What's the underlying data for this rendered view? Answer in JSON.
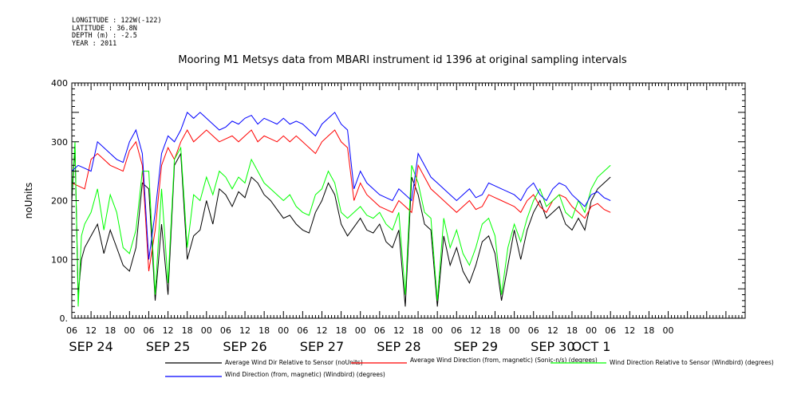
{
  "header": {
    "longitude": "LONGITUDE : 122W(-122)",
    "latitude": "LATITUDE : 36.8N",
    "depth": "DEPTH (m) : -2.5",
    "year": "YEAR : 2011"
  },
  "chart_data": {
    "type": "line",
    "title": "Mooring M1 Metsys data from MBARI instrument id 1396 at original sampling intervals",
    "ylabel": "noUnits",
    "ylim": [
      0,
      400
    ],
    "yticks": [
      0,
      100,
      200,
      300,
      400
    ],
    "ytick_labels": [
      "0.",
      "100",
      "200",
      "300",
      "400"
    ],
    "x_unit": "hours since 2011-09-24 00:00",
    "xlim": [
      6,
      216
    ],
    "hour_ticks": [
      "06",
      "12",
      "18",
      "00",
      "06",
      "12",
      "18",
      "00",
      "06",
      "12",
      "18",
      "00",
      "06",
      "12",
      "18",
      "00",
      "06",
      "12",
      "18",
      "00",
      "06",
      "12",
      "18",
      "00",
      "06",
      "12",
      "18",
      "00",
      "06",
      "12",
      "18",
      "00"
    ],
    "day_labels": [
      {
        "label": "SEP 24",
        "x": 12
      },
      {
        "label": "SEP 25",
        "x": 36
      },
      {
        "label": "SEP 26",
        "x": 60
      },
      {
        "label": "SEP 27",
        "x": 84
      },
      {
        "label": "SEP 28",
        "x": 108
      },
      {
        "label": "SEP 29",
        "x": 132
      },
      {
        "label": "SEP 30",
        "x": 156
      },
      {
        "label": "OCT 1",
        "x": 168
      }
    ],
    "grid": false,
    "legend_placement": "bottom",
    "series": [
      {
        "name": "Average Wind Dir Relative to Sensor (noUnits)",
        "color": "#000000",
        "x": [
          6,
          7,
          8,
          9,
          10,
          12,
          14,
          16,
          18,
          20,
          22,
          24,
          26,
          28,
          30,
          32,
          34,
          36,
          38,
          40,
          42,
          44,
          46,
          48,
          50,
          52,
          54,
          56,
          58,
          60,
          62,
          64,
          66,
          68,
          70,
          72,
          74,
          76,
          78,
          80,
          82,
          84,
          86,
          88,
          90,
          92,
          94,
          96,
          98,
          100,
          102,
          104,
          106,
          108,
          110,
          112,
          114,
          116,
          118,
          120,
          122,
          124,
          126,
          128,
          130,
          132,
          134,
          136,
          138,
          140,
          142,
          144,
          146,
          148,
          150,
          152,
          154,
          156,
          158,
          160,
          162,
          164,
          166,
          168,
          170,
          172,
          174
        ],
        "y": [
          200,
          290,
          40,
          100,
          120,
          140,
          160,
          110,
          150,
          120,
          90,
          80,
          120,
          230,
          220,
          30,
          160,
          40,
          260,
          280,
          100,
          140,
          150,
          200,
          160,
          220,
          210,
          190,
          215,
          205,
          240,
          230,
          210,
          200,
          185,
          170,
          175,
          160,
          150,
          145,
          180,
          200,
          230,
          210,
          160,
          140,
          155,
          170,
          150,
          145,
          160,
          130,
          120,
          150,
          20,
          240,
          210,
          160,
          150,
          20,
          140,
          90,
          120,
          80,
          60,
          90,
          130,
          140,
          110,
          30,
          90,
          150,
          100,
          150,
          180,
          200,
          170,
          180,
          190,
          160,
          150,
          170,
          150,
          200,
          220,
          230,
          240
        ],
        "breaks": []
      },
      {
        "name": "Average Wind Direction (from, magnetic) (Sonic-n/s) (degrees)",
        "color": "#ff0000",
        "x": [
          6,
          8,
          10,
          12,
          14,
          16,
          18,
          20,
          22,
          24,
          26,
          28,
          30,
          32,
          34,
          36,
          38,
          40,
          42,
          44,
          46,
          48,
          50,
          52,
          54,
          56,
          58,
          60,
          62,
          64,
          66,
          68,
          70,
          72,
          74,
          76,
          78,
          80,
          82,
          84,
          86,
          88,
          90,
          92,
          94,
          96,
          98,
          100,
          102,
          104,
          106,
          108,
          110,
          112,
          114,
          116,
          118,
          120,
          122,
          124,
          126,
          128,
          130,
          132,
          134,
          136,
          138,
          140,
          142,
          144,
          146,
          148,
          150,
          152,
          154,
          156,
          158,
          160,
          162,
          164,
          166,
          168,
          170,
          172,
          174
        ],
        "y": [
          230,
          225,
          220,
          270,
          280,
          270,
          260,
          255,
          250,
          285,
          300,
          260,
          80,
          150,
          260,
          290,
          270,
          300,
          320,
          300,
          310,
          320,
          310,
          300,
          305,
          310,
          300,
          310,
          320,
          300,
          310,
          305,
          300,
          310,
          300,
          310,
          300,
          290,
          280,
          300,
          310,
          320,
          300,
          290,
          200,
          230,
          210,
          200,
          190,
          185,
          180,
          200,
          190,
          180,
          260,
          240,
          220,
          210,
          200,
          190,
          180,
          190,
          200,
          185,
          190,
          210,
          205,
          200,
          195,
          190,
          180,
          200,
          210,
          190,
          180,
          200,
          210,
          205,
          190,
          180,
          170,
          190,
          195,
          185,
          180
        ],
        "breaks": []
      },
      {
        "name": "Wind Direction Relative to Sensor (Windbird) (degrees)",
        "color": "#00ff00",
        "x": [
          6,
          7,
          8,
          9,
          10,
          12,
          14,
          16,
          18,
          20,
          22,
          24,
          26,
          28,
          30,
          32,
          34,
          36,
          38,
          40,
          42,
          44,
          46,
          48,
          50,
          52,
          54,
          56,
          58,
          60,
          62,
          64,
          66,
          68,
          70,
          72,
          74,
          76,
          78,
          80,
          82,
          84,
          86,
          88,
          90,
          92,
          94,
          96,
          98,
          100,
          102,
          104,
          106,
          108,
          110,
          112,
          114,
          116,
          118,
          120,
          122,
          124,
          126,
          128,
          130,
          132,
          134,
          136,
          138,
          140,
          142,
          144,
          146,
          148,
          150,
          152,
          154,
          156,
          158,
          160,
          162,
          164,
          166,
          168,
          170,
          172,
          174
        ],
        "y": [
          210,
          300,
          20,
          140,
          160,
          180,
          220,
          150,
          210,
          180,
          120,
          110,
          150,
          250,
          250,
          40,
          220,
          60,
          270,
          290,
          120,
          210,
          200,
          240,
          210,
          250,
          240,
          220,
          240,
          230,
          270,
          250,
          230,
          220,
          210,
          200,
          210,
          190,
          180,
          175,
          210,
          220,
          250,
          230,
          180,
          170,
          180,
          190,
          175,
          170,
          180,
          160,
          150,
          180,
          40,
          260,
          230,
          180,
          170,
          30,
          170,
          120,
          150,
          110,
          90,
          120,
          160,
          170,
          140,
          40,
          120,
          160,
          130,
          170,
          200,
          220,
          190,
          200,
          210,
          180,
          170,
          200,
          180,
          220,
          240,
          250,
          260
        ],
        "breaks": []
      },
      {
        "name": "Wind Direction (from, magnetic) (Windbird) (degrees)",
        "color": "#0000ff",
        "x": [
          6,
          8,
          10,
          12,
          14,
          16,
          18,
          20,
          22,
          24,
          26,
          28,
          30,
          32,
          34,
          36,
          38,
          40,
          42,
          44,
          46,
          48,
          50,
          52,
          54,
          56,
          58,
          60,
          62,
          64,
          66,
          68,
          70,
          72,
          74,
          76,
          78,
          80,
          82,
          84,
          86,
          88,
          90,
          92,
          94,
          96,
          98,
          100,
          102,
          104,
          106,
          108,
          110,
          112,
          114,
          116,
          118,
          120,
          122,
          124,
          126,
          128,
          130,
          132,
          134,
          136,
          138,
          140,
          142,
          144,
          146,
          148,
          150,
          152,
          154,
          156,
          158,
          160,
          162,
          164,
          166,
          168,
          170,
          172,
          174
        ],
        "y": [
          250,
          260,
          255,
          250,
          300,
          290,
          280,
          270,
          265,
          300,
          320,
          280,
          100,
          180,
          280,
          310,
          300,
          320,
          350,
          340,
          350,
          340,
          330,
          320,
          325,
          335,
          330,
          340,
          345,
          330,
          340,
          335,
          330,
          340,
          330,
          335,
          330,
          320,
          310,
          330,
          340,
          350,
          330,
          320,
          220,
          250,
          230,
          220,
          210,
          205,
          200,
          220,
          210,
          200,
          280,
          260,
          240,
          230,
          220,
          210,
          200,
          210,
          220,
          205,
          210,
          230,
          225,
          220,
          215,
          210,
          200,
          220,
          230,
          210,
          200,
          220,
          230,
          225,
          210,
          200,
          190,
          210,
          215,
          205,
          200
        ],
        "breaks": []
      }
    ]
  }
}
